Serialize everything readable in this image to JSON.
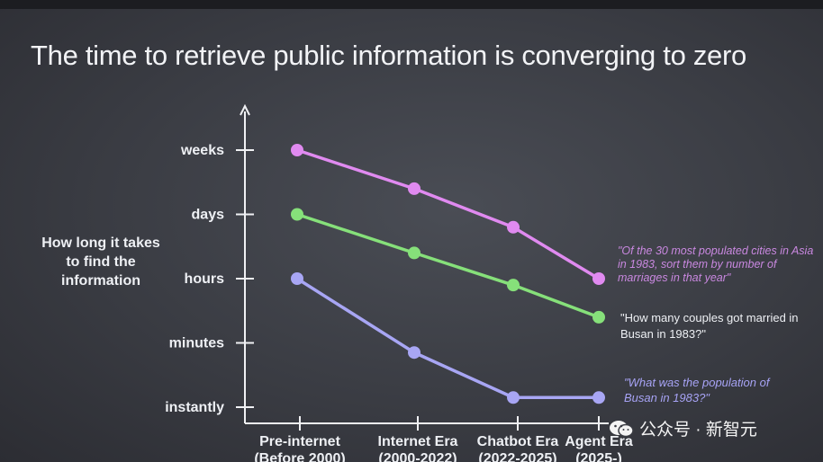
{
  "title": "The time to retrieve public information is converging to zero",
  "chart_data": {
    "type": "line",
    "title": "The time to retrieve public information is converging to zero",
    "ylabel": "How long it takes to find the information",
    "xlabel": "",
    "y_ticks": [
      "instantly",
      "minutes",
      "hours",
      "days",
      "weeks"
    ],
    "categories": [
      {
        "line1": "Pre-internet",
        "line2": "(Before 2000)"
      },
      {
        "line1": "Internet Era",
        "line2": "(2000-2022)"
      },
      {
        "line1": "Chatbot Era",
        "line2": "(2022-2025)"
      },
      {
        "line1": "Agent Era",
        "line2": "(2025-)"
      }
    ],
    "series": [
      {
        "name": "\"Of the 30 most populated cities in Asia in 1983, sort them by number of marriages in that year\"",
        "color": "#e08af0",
        "values": [
          4.0,
          3.4,
          2.8,
          2.0
        ]
      },
      {
        "name": "\"How many couples got married in Busan in 1983?\"",
        "color": "#86e07a",
        "values": [
          3.0,
          2.4,
          1.9,
          1.4
        ]
      },
      {
        "name": "\"What was the population of Busan in 1983?\"",
        "color": "#a8a6f4",
        "values": [
          2.0,
          0.85,
          0.15,
          0.15
        ]
      }
    ],
    "ylim": [
      0,
      4
    ],
    "grid": false
  },
  "watermark": {
    "text": "公众号 · 新智元",
    "icon": "wechat-icon"
  }
}
